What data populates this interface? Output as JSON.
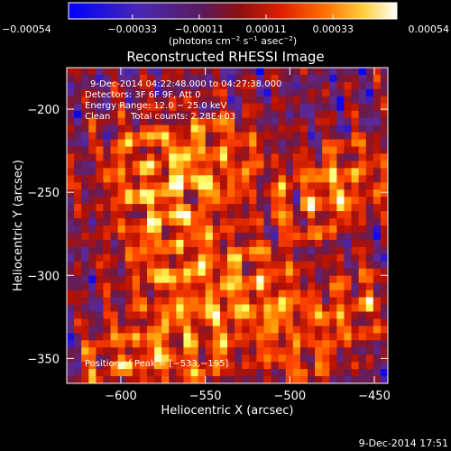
{
  "chart_data": {
    "type": "heatmap",
    "title": "Reconstructed RHESSI Image",
    "xlabel": "Heliocentric X (arcsec)",
    "ylabel": "Heliocentric Y (arcsec)",
    "xlim": [
      -632,
      -442
    ],
    "ylim": [
      -365,
      -175
    ],
    "xticks": [
      -600,
      -550,
      -500,
      -450
    ],
    "yticks": [
      -200,
      -250,
      -300,
      -350
    ],
    "xtick_labels": [
      "−600",
      "−550",
      "−500",
      "−450"
    ],
    "ytick_labels": [
      "−200",
      "−250",
      "−300",
      "−350"
    ],
    "colorbar": {
      "min": -0.00054,
      "max": 0.00054,
      "ticks": [
        -0.00054,
        -0.00033,
        -0.00011,
        0.00011,
        0.00033,
        0.00054
      ],
      "tick_labels": [
        "−0.00054",
        "−0.00033",
        "−0.00011",
        "0.00011",
        "0.00033",
        "0.00054"
      ],
      "unit_parts": [
        "(photons cm",
        "−2",
        " s",
        "−1",
        " asec",
        "−2",
        ")"
      ]
    },
    "annotations": {
      "time_range": "9‑Dec‑2014 04:22:48.000 to 04:27:38.000",
      "detectors": "Detectors: 3F 6F 9F, Att 0",
      "energy": "Energy Range: 12.0 − 25.0 keV",
      "method": "Clean",
      "counts": "Total counts: 2.28E+03",
      "peak": "Position of Peak = [−533,−195]"
    },
    "peak_position": [
      -533,
      -195
    ],
    "grid": false
  },
  "footer": {
    "timestamp": "9-Dec-2014 17:51"
  },
  "colors": {
    "background": "#000000",
    "foreground": "#ffffff",
    "colormap": [
      "#0000ff",
      "#5a2a9a",
      "#6a1a4a",
      "#b81000",
      "#ff4000",
      "#ff9000",
      "#ffff60",
      "#ffffff"
    ]
  }
}
